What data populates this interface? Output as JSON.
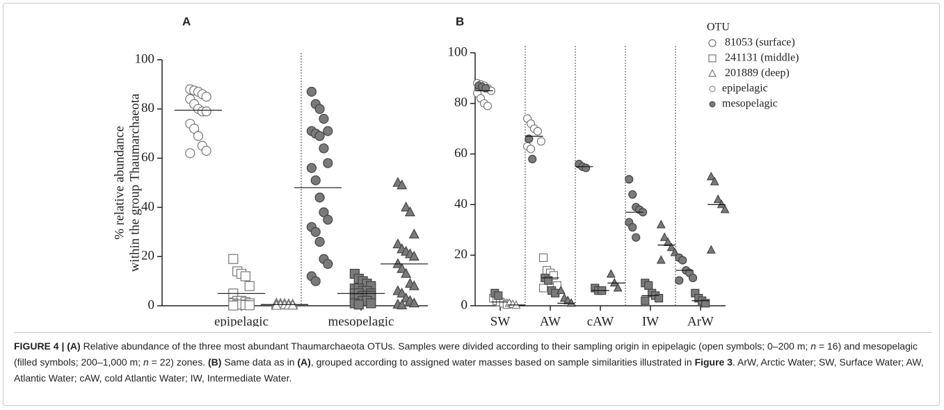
{
  "chart_data": [
    {
      "type": "strip",
      "panel": "A",
      "ylabel": [
        "% relative abundance",
        "within the group Thaumarchaeota"
      ],
      "categories": [
        "epipelagic",
        "mesopelagic"
      ],
      "ylim": [
        0,
        100
      ],
      "yticks": [
        0,
        20,
        40,
        60,
        80,
        100
      ],
      "series": [
        {
          "marker": "circle",
          "open": [
            [
              88,
              87.5,
              87,
              86,
              85,
              84,
              82,
              80,
              79,
              79,
              74,
              72,
              69,
              65,
              63,
              62
            ],
            []
          ],
          "filled": [
            [],
            [
              87,
              82,
              80,
              76,
              71,
              71,
              70,
              69,
              64,
              58,
              56,
              51,
              44,
              38,
              35,
              32,
              30,
              26,
              19,
              17,
              12,
              10
            ]
          ],
          "means": [
            79.5,
            48
          ]
        },
        {
          "marker": "square",
          "open": [
            [
              19,
              14,
              13,
              12,
              8,
              5,
              2,
              2,
              1.5,
              1,
              1,
              0.5,
              0.5,
              0.3,
              0.2,
              0.1
            ],
            []
          ],
          "filled": [
            [],
            [
              13,
              11,
              10,
              9,
              8,
              7,
              7,
              6,
              6,
              5,
              5,
              5,
              4,
              4,
              4,
              3,
              3,
              2,
              2,
              1,
              1,
              0.5
            ]
          ],
          "means": [
            5,
            5
          ]
        },
        {
          "marker": "triangle",
          "open": [
            [
              1,
              0.9,
              0.8,
              0.7,
              0.6,
              0.5,
              0.5,
              0.4,
              0.4,
              0.3,
              0.3,
              0.2,
              0.2,
              0.1,
              0.1,
              0
            ],
            []
          ],
          "filled": [
            [],
            [
              50,
              49,
              40,
              38,
              29,
              25,
              23,
              22,
              21,
              20,
              17,
              15,
              13,
              9,
              8,
              6,
              5,
              3,
              2,
              1,
              0.5,
              0.2
            ]
          ],
          "means": [
            0.5,
            17
          ]
        }
      ]
    },
    {
      "type": "strip",
      "panel": "B",
      "categories": [
        "SW",
        "AW",
        "cAW",
        "IW",
        "ArW"
      ],
      "ylim": [
        0,
        100
      ],
      "yticks": [
        0,
        20,
        40,
        60,
        80,
        100
      ],
      "legend_title": "OTU",
      "origins": [
        "epipelagic",
        "mesopelagic"
      ],
      "series": [
        {
          "name": "81053 (surface)",
          "marker": "circle",
          "open": [
            [
              88,
              87.5,
              87,
              86,
              85,
              84,
              82,
              80,
              79
            ],
            [
              74,
              72,
              70,
              69,
              65,
              63,
              62
            ],
            [],
            [],
            []
          ],
          "filled": [
            [
              87,
              86.5,
              86
            ],
            [
              66,
              58
            ],
            [
              56,
              55,
              54.5
            ],
            [
              50,
              44,
              39,
              38,
              37,
              33,
              31,
              27
            ],
            [
              19,
              18,
              14,
              13,
              11,
              10
            ]
          ],
          "means": [
            85,
            67,
            55,
            37,
            14
          ]
        },
        {
          "name": "241131 (middle)",
          "marker": "square",
          "open": [
            [
              3,
              2,
              1.5,
              1,
              0.5
            ],
            [
              19,
              14,
              13,
              12,
              8,
              7
            ],
            [],
            [],
            []
          ],
          "filled": [
            [
              5,
              4
            ],
            [
              11,
              10,
              6,
              5
            ],
            [
              7,
              6,
              6
            ],
            [
              9,
              8,
              5,
              4,
              3,
              2
            ],
            [
              5,
              3,
              2,
              1
            ]
          ],
          "means": [
            1.5,
            11,
            6,
            4,
            2
          ]
        },
        {
          "name": "201889 (deep)",
          "marker": "triangle",
          "open": [
            [
              1,
              0.5,
              0.2
            ],
            [],
            [],
            [],
            []
          ],
          "filled": [
            [],
            [
              6,
              3,
              2,
              1
            ],
            [
              12.5,
              9,
              7
            ],
            [
              32,
              27,
              25,
              23,
              21,
              18
            ],
            [
              51,
              49,
              42,
              40,
              38,
              22
            ]
          ],
          "means": [
            0.3,
            1,
            9,
            24,
            40
          ]
        }
      ]
    }
  ],
  "caption": [
    {
      "text": "FIGURE 4 | (A)",
      "style": "bold"
    },
    {
      "text": " Relative abundance of the three most abundant Thaumarchaeota OTUs. Samples were divided according to their sampling origin in epipelagic (open symbols; 0–200 m; "
    },
    {
      "text": "n",
      "style": "italic"
    },
    {
      "text": " = 16) and mesopelagic (filled symbols; 200–1,000 m; "
    },
    {
      "text": "n",
      "style": "italic"
    },
    {
      "text": " = 22) zones. "
    },
    {
      "text": "(B)",
      "style": "bold"
    },
    {
      "text": " Same data as in "
    },
    {
      "text": "(A)",
      "style": "bold"
    },
    {
      "text": ", grouped according to assigned water masses based on sample similarities illustrated in "
    },
    {
      "text": "Figure 3",
      "style": "bold"
    },
    {
      "text": ". ArW, Arctic Water; SW, Surface Water; AW, Atlantic Water; cAW, cold Atlantic Water; IW, Intermediate Water."
    }
  ]
}
